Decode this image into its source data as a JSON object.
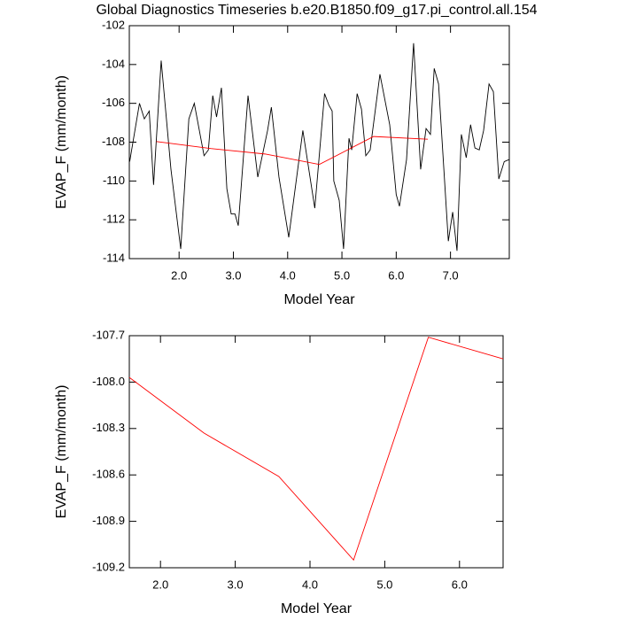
{
  "chart_data": [
    {
      "type": "line",
      "title": "Global Diagnostics Timeseries b.e20.B1850.f09_g17.pi_control.all.154",
      "x_label": "Model Year",
      "y_label": "EVAP_F (mm/month)",
      "xlim": [
        1.083,
        8.083
      ],
      "ylim": [
        -114,
        -102
      ],
      "xticks": [
        {
          "value": 2,
          "label": "2.0"
        },
        {
          "value": 3,
          "label": "3.0"
        },
        {
          "value": 4,
          "label": "4.0"
        },
        {
          "value": 5,
          "label": "5.0"
        },
        {
          "value": 6,
          "label": "6.0"
        },
        {
          "value": 7,
          "label": "7.0"
        }
      ],
      "yticks": [
        -102,
        -104,
        -106,
        -108,
        -110,
        -112,
        -114
      ],
      "series": [
        {
          "color": "#000000",
          "x": [
            1.09,
            1.27,
            1.36,
            1.45,
            1.53,
            1.67,
            1.85,
            2.03,
            2.18,
            2.28,
            2.46,
            2.54,
            2.62,
            2.69,
            2.78,
            2.88,
            2.96,
            3.03,
            3.09,
            3.27,
            3.45,
            3.63,
            3.7,
            3.84,
            4.02,
            4.28,
            4.5,
            4.68,
            4.76,
            4.82,
            4.85,
            4.95,
            5.03,
            5.13,
            5.18,
            5.28,
            5.36,
            5.44,
            5.52,
            5.7,
            5.88,
            6.0,
            6.06,
            6.19,
            6.32,
            6.45,
            6.55,
            6.63,
            6.7,
            6.78,
            6.96,
            7.04,
            7.12,
            7.2,
            7.29,
            7.37,
            7.45,
            7.53,
            7.61,
            7.71,
            7.79,
            7.89,
            7.99,
            8.08
          ],
          "values": [
            -109.0,
            -106.0,
            -106.8,
            -106.4,
            -110.2,
            -103.8,
            -109.4,
            -113.5,
            -106.8,
            -106.0,
            -108.7,
            -108.4,
            -105.6,
            -106.7,
            -105.2,
            -110.4,
            -111.7,
            -111.7,
            -112.3,
            -105.6,
            -109.8,
            -107.4,
            -106.2,
            -109.8,
            -112.9,
            -107.4,
            -111.4,
            -105.5,
            -106.1,
            -106.4,
            -110.0,
            -111.0,
            -113.5,
            -107.8,
            -108.4,
            -105.5,
            -106.3,
            -108.7,
            -108.4,
            -104.5,
            -107.1,
            -110.7,
            -111.3,
            -108.9,
            -102.9,
            -109.4,
            -107.3,
            -107.6,
            -104.2,
            -105.0,
            -113.1,
            -111.6,
            -113.6,
            -107.6,
            -108.8,
            -107.1,
            -108.3,
            -108.4,
            -107.4,
            -105.0,
            -105.4,
            -109.9,
            -109.0,
            -108.9
          ]
        },
        {
          "color": "#ff0000",
          "x": [
            1.583,
            2.583,
            3.583,
            4.583,
            5.583,
            6.583
          ],
          "values": [
            -107.97,
            -108.33,
            -108.61,
            -109.15,
            -107.71,
            -107.85
          ]
        }
      ]
    },
    {
      "type": "line",
      "x_label": "Model Year",
      "y_label": "EVAP_F (mm/month)",
      "xlim": [
        1.583,
        6.583
      ],
      "ylim": [
        -109.2,
        -107.7
      ],
      "xticks": [
        {
          "value": 2,
          "label": "2.0"
        },
        {
          "value": 3,
          "label": "3.0"
        },
        {
          "value": 4,
          "label": "4.0"
        },
        {
          "value": 5,
          "label": "5.0"
        },
        {
          "value": 6,
          "label": "6.0"
        }
      ],
      "yticks": [
        -107.7,
        {
          "value": -108,
          "label": "-108.0"
        },
        -108.3,
        -108.6,
        -108.9,
        -109.2
      ],
      "series": [
        {
          "color": "#ff0000",
          "x": [
            1.583,
            2.583,
            3.583,
            4.583,
            5.583,
            6.583
          ],
          "values": [
            -107.97,
            -108.33,
            -108.61,
            -109.15,
            -107.71,
            -107.85
          ]
        }
      ]
    }
  ]
}
